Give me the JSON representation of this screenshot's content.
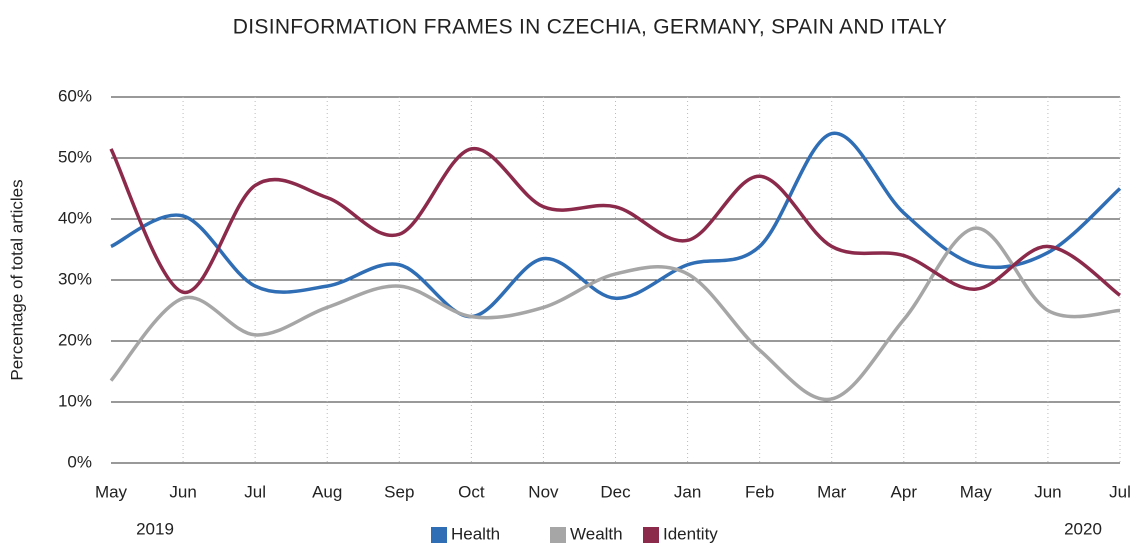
{
  "chart_data": {
    "type": "line",
    "title": "DISINFORMATION FRAMES IN CZECHIA, GERMANY, SPAIN AND ITALY",
    "y_label": "Percentage of total articles",
    "categories": [
      "May",
      "Jun",
      "Jul",
      "Aug",
      "Sep",
      "Oct",
      "Nov",
      "Dec",
      "Jan",
      "Feb",
      "Mar",
      "Apr",
      "May",
      "Jun",
      "Jul"
    ],
    "annotations": [
      "2019",
      "2020"
    ],
    "series": [
      {
        "name": "Health",
        "color": "#2f6db5",
        "values": [
          35.5,
          40.5,
          29,
          29,
          32.5,
          24,
          33.5,
          27,
          32.5,
          35.5,
          54,
          41,
          32.5,
          34.5,
          45
        ]
      },
      {
        "name": "Wealth",
        "color": "#a6a6a6",
        "values": [
          13.5,
          27,
          21,
          25.5,
          29,
          24,
          25.5,
          31,
          31,
          18.5,
          10.5,
          23.5,
          38.5,
          25,
          25
        ]
      },
      {
        "name": "Identity",
        "color": "#8b2a4a",
        "values": [
          51.5,
          28,
          45.5,
          43.5,
          37.5,
          51.5,
          42,
          42,
          36.5,
          47,
          35.5,
          34,
          28.5,
          35.5,
          27.5
        ]
      }
    ],
    "ylim": [
      0,
      60
    ],
    "yticks": [
      {
        "value": 0,
        "label": "0%"
      },
      {
        "value": 10,
        "label": "10%"
      },
      {
        "value": 20,
        "label": "20%"
      },
      {
        "value": 30,
        "label": "30%"
      },
      {
        "value": 40,
        "label": "40%"
      },
      {
        "value": 50,
        "label": "50%"
      },
      {
        "value": 60,
        "label": "60%"
      }
    ],
    "grid": true,
    "smooth": true,
    "legend": "bottom"
  }
}
